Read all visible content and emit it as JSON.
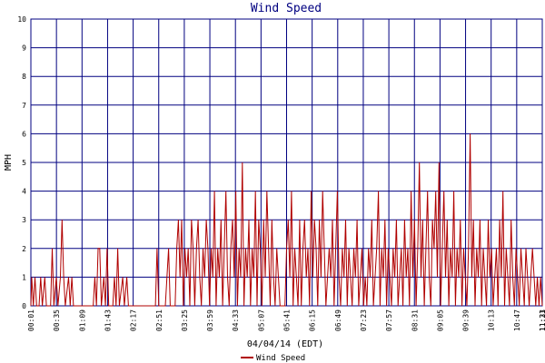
{
  "chart_data": {
    "type": "line",
    "title": "Wind Speed",
    "xlabel": "04/04/14 (EDT)",
    "ylabel": "MPH",
    "ylim": [
      0,
      10
    ],
    "yticks": [
      0,
      1,
      2,
      3,
      4,
      5,
      6,
      7,
      8,
      9,
      10
    ],
    "grid": true,
    "legend_position": "bottom-left",
    "x_tick_labels": [
      "00:01",
      "00:35",
      "01:09",
      "01:43",
      "02:17",
      "02:51",
      "03:25",
      "03:59",
      "04:33",
      "05:07",
      "05:41",
      "06:15",
      "06:49",
      "07:23",
      "07:57",
      "08:31",
      "09:05",
      "09:39",
      "10:13",
      "10:47",
      "11:21",
      "11:33"
    ],
    "series": [
      {
        "name": "Wind Speed",
        "color": "#b00000",
        "points": [
          [
            0.0,
            0
          ],
          [
            0.5,
            1
          ],
          [
            1.5,
            0
          ],
          [
            2.5,
            1
          ],
          [
            3.5,
            0
          ],
          [
            5.0,
            0
          ],
          [
            6.0,
            1
          ],
          [
            7.0,
            0
          ],
          [
            8.5,
            1
          ],
          [
            9.5,
            0
          ],
          [
            12.0,
            0
          ],
          [
            13.0,
            2
          ],
          [
            14.0,
            0
          ],
          [
            15.5,
            1
          ],
          [
            16.5,
            0
          ],
          [
            18.0,
            1
          ],
          [
            19.0,
            3
          ],
          [
            20.0,
            1
          ],
          [
            21.0,
            0
          ],
          [
            23.0,
            1
          ],
          [
            24.0,
            0
          ],
          [
            25.0,
            1
          ],
          [
            26.0,
            0
          ],
          [
            38.0,
            0
          ],
          [
            39.0,
            1
          ],
          [
            40.0,
            0
          ],
          [
            41.0,
            2
          ],
          [
            42.0,
            2
          ],
          [
            43.0,
            0
          ],
          [
            44.5,
            1
          ],
          [
            45.5,
            0
          ],
          [
            46.5,
            2
          ],
          [
            47.5,
            0
          ],
          [
            50.0,
            0
          ],
          [
            51.0,
            1
          ],
          [
            52.0,
            0
          ],
          [
            53.0,
            2
          ],
          [
            54.0,
            0
          ],
          [
            56.0,
            1
          ],
          [
            57.0,
            0
          ],
          [
            58.5,
            1
          ],
          [
            59.5,
            0
          ],
          [
            76.0,
            0
          ],
          [
            77.0,
            2
          ],
          [
            78.0,
            0
          ],
          [
            82.0,
            0
          ],
          [
            83.0,
            1
          ],
          [
            84.0,
            2
          ],
          [
            85.0,
            0
          ],
          [
            88.0,
            0
          ],
          [
            89.0,
            2
          ],
          [
            90.0,
            3
          ],
          [
            91.0,
            1
          ],
          [
            92.0,
            3
          ],
          [
            93.0,
            0
          ],
          [
            94.0,
            2
          ],
          [
            95.0,
            1
          ],
          [
            96.0,
            2
          ],
          [
            97.0,
            0
          ],
          [
            98.0,
            3
          ],
          [
            99.0,
            2
          ],
          [
            100.0,
            0
          ],
          [
            101.0,
            2
          ],
          [
            102.0,
            3
          ],
          [
            103.0,
            1
          ],
          [
            104.0,
            0
          ],
          [
            105.0,
            2
          ],
          [
            106.0,
            1
          ],
          [
            107.0,
            3
          ],
          [
            108.0,
            2
          ],
          [
            109.0,
            0
          ],
          [
            110.0,
            2
          ],
          [
            111.0,
            1
          ],
          [
            112.0,
            4
          ],
          [
            113.0,
            0
          ],
          [
            114.0,
            2
          ],
          [
            115.0,
            1
          ],
          [
            116.0,
            3
          ],
          [
            117.0,
            0
          ],
          [
            118.0,
            2
          ],
          [
            119.0,
            4
          ],
          [
            120.0,
            1
          ],
          [
            121.0,
            0
          ],
          [
            122.0,
            2
          ],
          [
            123.0,
            3
          ],
          [
            124.0,
            1
          ],
          [
            125.0,
            4
          ],
          [
            126.0,
            0
          ],
          [
            127.0,
            2
          ],
          [
            128.0,
            1
          ],
          [
            129.0,
            5
          ],
          [
            130.0,
            0
          ],
          [
            131.0,
            2
          ],
          [
            132.0,
            1
          ],
          [
            133.0,
            3
          ],
          [
            134.0,
            0
          ],
          [
            135.0,
            2
          ],
          [
            136.0,
            1
          ],
          [
            137.0,
            4
          ],
          [
            138.0,
            0
          ],
          [
            139.0,
            3
          ],
          [
            140.0,
            2
          ],
          [
            141.0,
            0
          ],
          [
            142.0,
            3
          ],
          [
            143.0,
            1
          ],
          [
            144.0,
            4
          ],
          [
            145.0,
            2
          ],
          [
            146.0,
            0
          ],
          [
            147.0,
            3
          ],
          [
            148.0,
            1
          ],
          [
            149.0,
            0
          ],
          [
            150.0,
            2
          ],
          [
            151.0,
            1
          ],
          [
            152.0,
            0
          ],
          [
            155.0,
            0
          ],
          [
            156.0,
            2
          ],
          [
            157.0,
            3
          ],
          [
            158.0,
            1
          ],
          [
            159.0,
            4
          ],
          [
            160.0,
            0
          ],
          [
            161.0,
            2
          ],
          [
            162.0,
            1
          ],
          [
            163.0,
            0
          ],
          [
            164.0,
            3
          ],
          [
            165.0,
            0
          ],
          [
            166.0,
            2
          ],
          [
            167.0,
            3
          ],
          [
            168.0,
            1
          ],
          [
            169.0,
            2
          ],
          [
            170.0,
            0
          ],
          [
            171.0,
            4
          ],
          [
            172.0,
            1
          ],
          [
            173.0,
            3
          ],
          [
            174.0,
            2
          ],
          [
            175.0,
            0
          ],
          [
            176.0,
            3
          ],
          [
            177.0,
            1
          ],
          [
            178.0,
            4
          ],
          [
            179.0,
            2
          ],
          [
            180.0,
            0
          ],
          [
            181.0,
            1
          ],
          [
            182.0,
            2
          ],
          [
            183.0,
            1
          ],
          [
            184.0,
            3
          ],
          [
            185.0,
            0
          ],
          [
            186.0,
            2
          ],
          [
            187.0,
            4
          ],
          [
            188.0,
            1
          ],
          [
            189.0,
            0
          ],
          [
            190.0,
            2
          ],
          [
            191.0,
            1
          ],
          [
            192.0,
            3
          ],
          [
            193.0,
            0
          ],
          [
            194.0,
            2
          ],
          [
            195.0,
            1
          ],
          [
            196.0,
            0
          ],
          [
            197.0,
            2
          ],
          [
            198.0,
            1
          ],
          [
            199.0,
            3
          ],
          [
            200.0,
            0
          ],
          [
            201.0,
            1
          ],
          [
            202.0,
            2
          ],
          [
            203.0,
            0
          ],
          [
            204.0,
            1
          ],
          [
            205.0,
            0
          ],
          [
            206.0,
            2
          ],
          [
            207.0,
            1
          ],
          [
            208.0,
            3
          ],
          [
            209.0,
            0
          ],
          [
            210.0,
            1
          ],
          [
            211.0,
            2
          ],
          [
            212.0,
            4
          ],
          [
            213.0,
            0
          ],
          [
            214.0,
            2
          ],
          [
            215.0,
            1
          ],
          [
            216.0,
            3
          ],
          [
            217.0,
            0
          ],
          [
            218.0,
            2
          ],
          [
            219.0,
            1
          ],
          [
            220.0,
            0
          ],
          [
            221.0,
            2
          ],
          [
            222.0,
            1
          ],
          [
            223.0,
            3
          ],
          [
            224.0,
            0
          ],
          [
            225.0,
            1
          ],
          [
            226.0,
            2
          ],
          [
            227.0,
            0
          ],
          [
            228.0,
            3
          ],
          [
            229.0,
            1
          ],
          [
            230.0,
            2
          ],
          [
            231.0,
            0
          ],
          [
            232.0,
            4
          ],
          [
            233.0,
            1
          ],
          [
            234.0,
            3
          ],
          [
            235.0,
            0
          ],
          [
            236.0,
            2
          ],
          [
            237.0,
            5
          ],
          [
            238.0,
            1
          ],
          [
            239.0,
            3
          ],
          [
            240.0,
            0
          ],
          [
            241.0,
            2
          ],
          [
            242.0,
            4
          ],
          [
            243.0,
            1
          ],
          [
            244.0,
            0
          ],
          [
            245.0,
            3
          ],
          [
            246.0,
            2
          ],
          [
            247.0,
            4
          ],
          [
            248.0,
            1
          ],
          [
            249.0,
            5
          ],
          [
            250.0,
            0
          ],
          [
            251.0,
            2
          ],
          [
            252.0,
            4
          ],
          [
            253.0,
            1
          ],
          [
            254.0,
            3
          ],
          [
            255.0,
            0
          ],
          [
            256.0,
            2
          ],
          [
            257.0,
            1
          ],
          [
            258.0,
            4
          ],
          [
            259.0,
            0
          ],
          [
            260.0,
            2
          ],
          [
            261.0,
            1
          ],
          [
            262.0,
            3
          ],
          [
            263.0,
            0
          ],
          [
            264.0,
            2
          ],
          [
            265.0,
            1
          ],
          [
            266.0,
            0
          ],
          [
            267.0,
            2
          ],
          [
            268.0,
            6
          ],
          [
            269.0,
            1
          ],
          [
            270.0,
            3
          ],
          [
            271.0,
            0
          ],
          [
            272.0,
            2
          ],
          [
            273.0,
            1
          ],
          [
            274.0,
            3
          ],
          [
            275.0,
            0
          ],
          [
            276.0,
            2
          ],
          [
            277.0,
            1
          ],
          [
            278.0,
            0
          ],
          [
            279.0,
            3
          ],
          [
            280.0,
            1
          ],
          [
            281.0,
            2
          ],
          [
            282.0,
            0
          ],
          [
            283.0,
            1
          ],
          [
            284.0,
            2
          ],
          [
            285.0,
            0
          ],
          [
            286.0,
            3
          ],
          [
            287.0,
            1
          ],
          [
            288.0,
            4
          ],
          [
            289.0,
            0
          ],
          [
            290.0,
            2
          ],
          [
            291.0,
            1
          ],
          [
            292.0,
            0
          ],
          [
            293.0,
            3
          ],
          [
            294.0,
            1
          ],
          [
            295.0,
            0
          ],
          [
            296.0,
            2
          ],
          [
            297.0,
            1
          ],
          [
            298.0,
            0
          ],
          [
            299.0,
            2
          ],
          [
            300.0,
            1
          ],
          [
            301.0,
            0
          ],
          [
            302.0,
            2
          ],
          [
            303.0,
            1
          ],
          [
            304.0,
            0
          ],
          [
            305.0,
            1
          ],
          [
            306.0,
            2
          ],
          [
            307.0,
            1
          ],
          [
            308.0,
            0
          ],
          [
            309.0,
            1
          ],
          [
            310.0,
            0
          ],
          [
            311.0,
            1
          ],
          [
            312.0,
            0
          ]
        ]
      }
    ]
  }
}
